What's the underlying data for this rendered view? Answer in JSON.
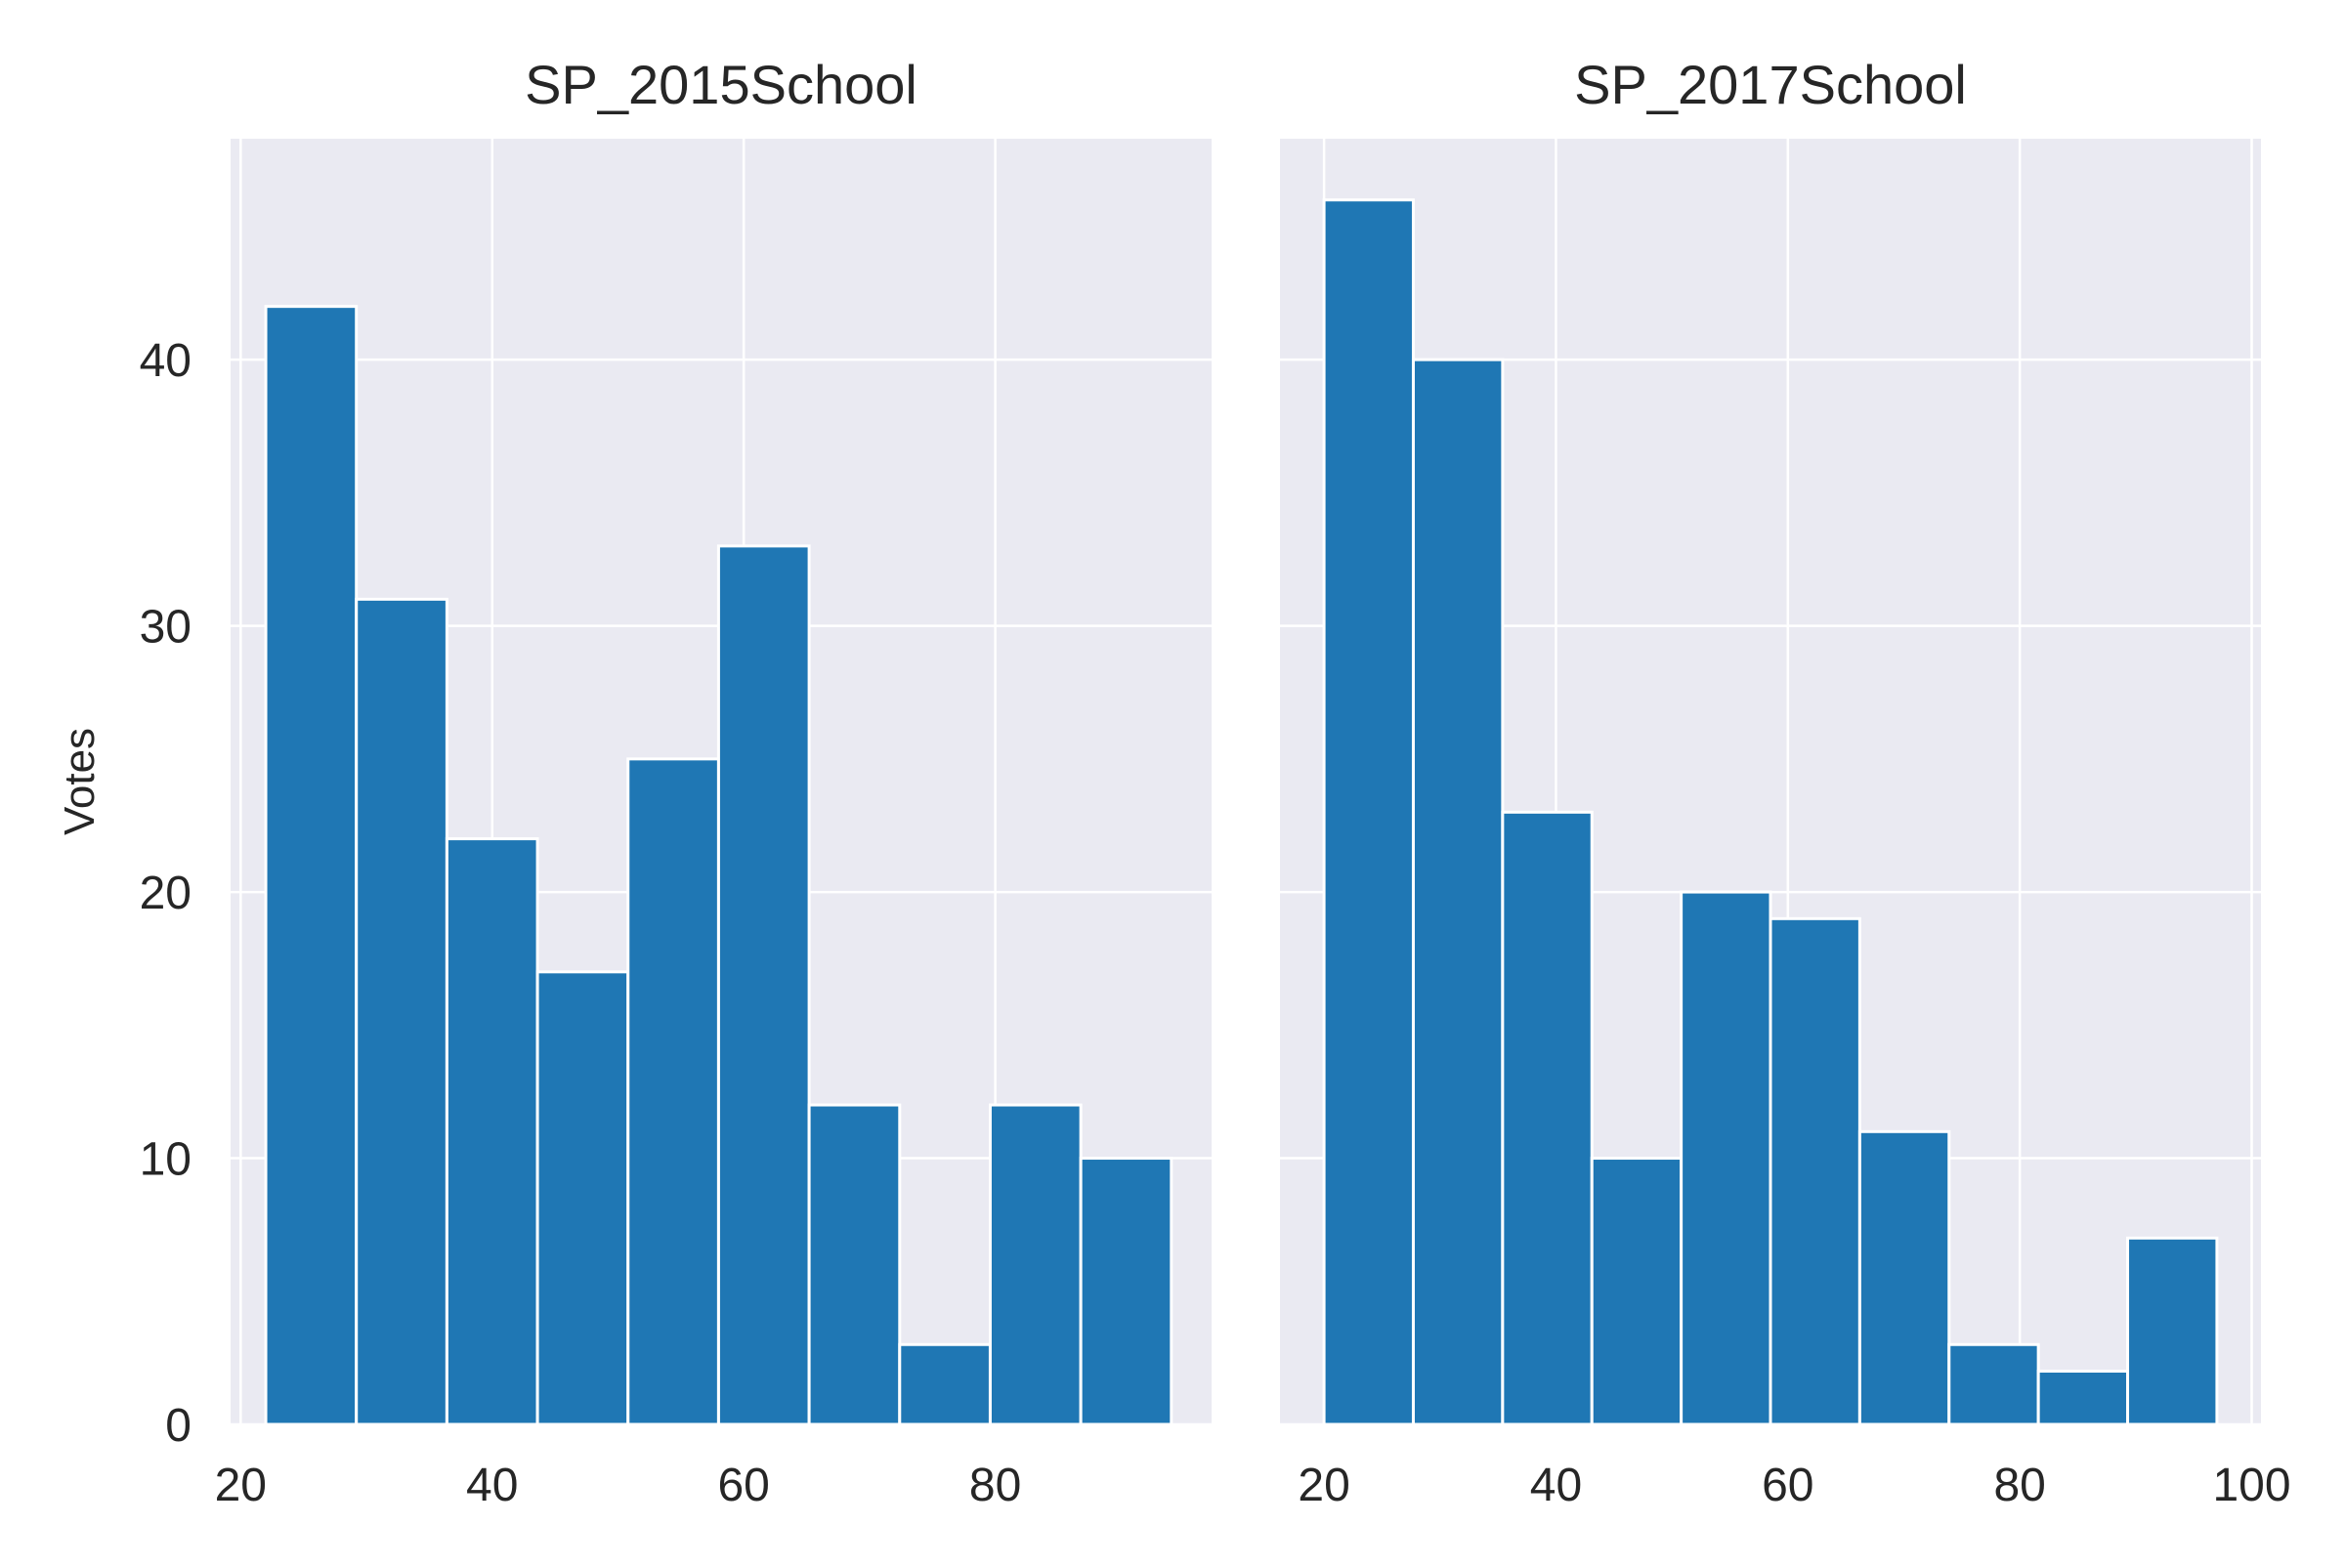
{
  "chart_data": [
    {
      "type": "bar",
      "title": "SP_2015School",
      "ylabel": "Votes",
      "xlabel": "",
      "bins": [
        [
          22,
          29.2
        ],
        [
          29.2,
          36.4
        ],
        [
          36.4,
          43.6
        ],
        [
          43.6,
          50.8
        ],
        [
          50.8,
          58
        ],
        [
          58,
          65.2
        ],
        [
          65.2,
          72.4
        ],
        [
          72.4,
          79.6
        ],
        [
          79.6,
          86.8
        ],
        [
          86.8,
          94
        ]
      ],
      "values": [
        42,
        31,
        22,
        17,
        25,
        33,
        12,
        3,
        12,
        10
      ],
      "xlim": [
        19.2,
        97.2
      ],
      "ylim": [
        0,
        48.3
      ],
      "xticks": [
        20,
        40,
        60,
        80
      ],
      "yticks": [
        0,
        10,
        20,
        30,
        40
      ],
      "grid": true,
      "color": "#1f77b4",
      "background": "#eaeaf2"
    },
    {
      "type": "bar",
      "title": "SP_2017School",
      "xlabel": "",
      "bins": [
        [
          20,
          27.7
        ],
        [
          27.7,
          35.4
        ],
        [
          35.4,
          43.1
        ],
        [
          43.1,
          50.8
        ],
        [
          50.8,
          58.5
        ],
        [
          58.5,
          66.2
        ],
        [
          66.2,
          73.9
        ],
        [
          73.9,
          81.6
        ],
        [
          81.6,
          89.3
        ],
        [
          89.3,
          97
        ]
      ],
      "values": [
        46,
        40,
        23,
        10,
        20,
        19,
        11,
        3,
        2,
        7
      ],
      "xlim": [
        16.2,
        100.8
      ],
      "ylim": [
        0,
        48.3
      ],
      "xticks": [
        20,
        40,
        60,
        80,
        100
      ],
      "yticks": [
        0,
        10,
        20,
        30,
        40
      ],
      "grid": true,
      "color": "#1f77b4",
      "background": "#eaeaf2"
    }
  ]
}
